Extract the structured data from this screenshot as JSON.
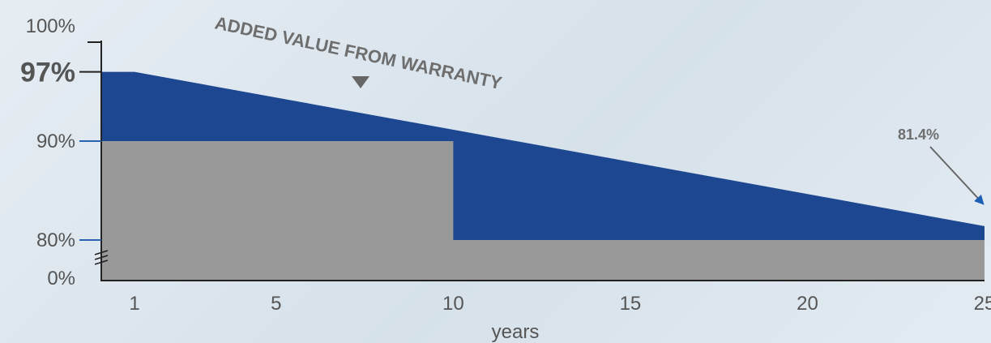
{
  "chart_data": {
    "type": "area",
    "xlabel": "years",
    "ylabel": "",
    "x_ticks": [
      1,
      5,
      10,
      15,
      20,
      25
    ],
    "y_ticks": [
      {
        "value": 100,
        "label": "100%",
        "bold": false,
        "marker": false
      },
      {
        "value": 97,
        "label": "97%",
        "bold": true,
        "marker": true
      },
      {
        "value": 90,
        "label": "90%",
        "bold": false,
        "marker": true
      },
      {
        "value": 80,
        "label": "80%",
        "bold": false,
        "marker": true
      },
      {
        "value": 0,
        "label": "0%",
        "bold": false,
        "marker": false
      }
    ],
    "xlim": [
      0,
      25
    ],
    "axis_break": true,
    "series": [
      {
        "name": "",
        "kind": "linear warranty",
        "color": "#1d4891",
        "points": [
          [
            0,
            97
          ],
          [
            1,
            97
          ],
          [
            25,
            81.4
          ]
        ]
      },
      {
        "name": "",
        "kind": "step warranty",
        "color": "#999999",
        "points": [
          [
            0,
            90
          ],
          [
            10,
            90
          ],
          [
            10,
            80
          ],
          [
            25,
            80
          ]
        ]
      }
    ],
    "annotations": [
      {
        "text": "ADDED VALUE FROM WARRANTY",
        "points_to": [
          7.5,
          93
        ]
      },
      {
        "text": "81.4%",
        "points_to": [
          25,
          82.5
        ]
      }
    ]
  }
}
